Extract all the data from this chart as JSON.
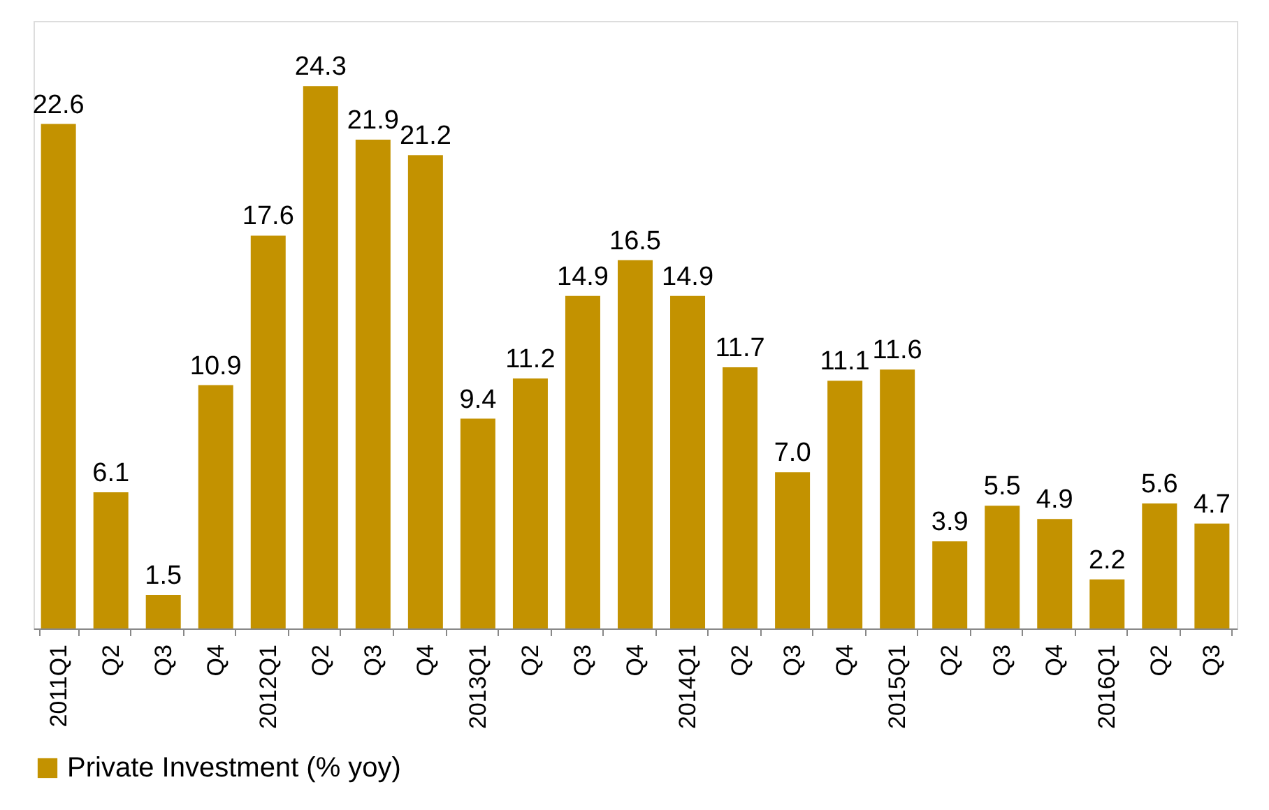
{
  "chart_data": {
    "type": "bar",
    "categories": [
      "2011Q1",
      "Q2",
      "Q3",
      "Q4",
      "2012Q1",
      "Q2",
      "Q3",
      "Q4",
      "2013Q1",
      "Q2",
      "Q3",
      "Q4",
      "2014Q1",
      "Q2",
      "Q3",
      "Q4",
      "2015Q1",
      "Q2",
      "Q3",
      "Q4",
      "2016Q1",
      "Q2",
      "Q3"
    ],
    "series": [
      {
        "name": "Private Investment (% yoy)",
        "color": "#c39200",
        "values": [
          22.6,
          6.1,
          1.5,
          10.9,
          17.6,
          24.3,
          21.9,
          21.2,
          9.4,
          11.2,
          14.9,
          16.5,
          14.9,
          11.7,
          7.0,
          11.1,
          11.6,
          3.9,
          5.5,
          4.9,
          2.2,
          5.6,
          4.7
        ],
        "value_labels": [
          "22.6",
          "6.1",
          "1.5",
          "10.9",
          "17.6",
          "24.3",
          "21.9",
          "21.2",
          "9.4",
          "11.2",
          "14.9",
          "16.5",
          "14.9",
          "11.7",
          "7.0",
          "11.1",
          "11.6",
          "3.9",
          "5.5",
          "4.9",
          "2.2",
          "5.6",
          "4.7"
        ]
      }
    ],
    "legend": "bottom",
    "grid": false
  }
}
